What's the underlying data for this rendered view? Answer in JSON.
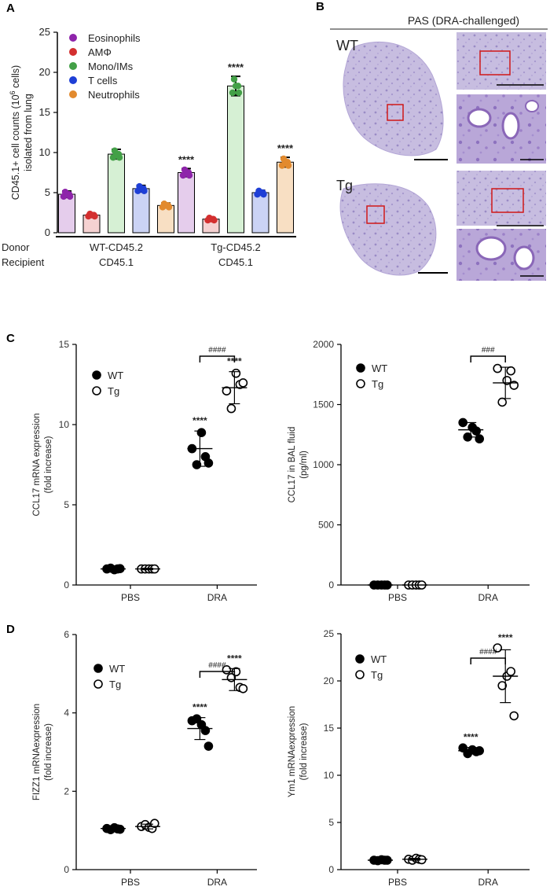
{
  "panel_labels": {
    "a": "A",
    "b": "B",
    "c": "C",
    "d": "D"
  },
  "colors": {
    "eos": "#8e24aa",
    "am": "#d32f2f",
    "mono": "#43a047",
    "t": "#1e3fd6",
    "neu": "#e28a2e"
  },
  "panelB": {
    "title": "PAS (DRA-challenged)",
    "wt_label": "WT",
    "tg_label": "Tg"
  },
  "chart_data": [
    {
      "id": "A",
      "type": "bar",
      "ylabel": "CD45.1+ cell counts (10^6 cells) isolated from lung",
      "ylabel_line1": "CD45.1+ cell counts (10",
      "ylabel_sup": "6",
      "ylabel_line1b": " cells)",
      "ylabel_line2": "isolated from lung",
      "ylim": [
        0,
        25
      ],
      "yticks": [
        0,
        5,
        10,
        15,
        20,
        25
      ],
      "series_names": [
        "Eosinophils",
        "AMΦ",
        "Mono/IMs",
        "T cells",
        "Neutrophils"
      ],
      "groups": [
        {
          "donor": "WT-CD45.2",
          "recipient": "CD45.1",
          "values": [
            4.8,
            2.2,
            9.8,
            5.5,
            3.4
          ],
          "errors": [
            0.4,
            0.2,
            0.6,
            0.4,
            0.3
          ],
          "sig": [
            "",
            "",
            "",
            "",
            ""
          ]
        },
        {
          "donor": "Tg-CD45.2",
          "recipient": "CD45.1",
          "values": [
            7.5,
            1.7,
            18.3,
            5.0,
            8.8
          ],
          "errors": [
            0.5,
            0.2,
            1.2,
            0.3,
            0.6
          ],
          "sig": [
            "****",
            "",
            "****",
            "",
            "****"
          ]
        }
      ],
      "row_labels": {
        "donor": "Donor",
        "recipient": "Recipient"
      }
    },
    {
      "id": "C1",
      "type": "scatter",
      "ylabel_line1": "CCL17 mRNA expression",
      "ylabel_line2": "(fold increase)",
      "ylim": [
        0,
        15
      ],
      "yticks": [
        0,
        5,
        10,
        15
      ],
      "categories": [
        "PBS",
        "DRA"
      ],
      "series": [
        {
          "name": "WT",
          "filled": true,
          "means": [
            1.0,
            8.5
          ],
          "errors": [
            0.05,
            1.1
          ],
          "points": [
            [
              1.0,
              1.05,
              0.95,
              1.0,
              1.02
            ],
            [
              8.5,
              7.5,
              9.5,
              8.0,
              7.6
            ]
          ]
        },
        {
          "name": "Tg",
          "filled": false,
          "means": [
            1.0,
            12.3
          ],
          "errors": [
            0.05,
            1.0
          ],
          "points": [
            [
              1.0,
              1.0,
              1.0,
              1.0,
              1.0
            ],
            [
              12.1,
              11.0,
              13.2,
              12.5,
              12.6
            ]
          ]
        }
      ],
      "stars": [
        "****",
        "****"
      ],
      "bracket": "####"
    },
    {
      "id": "C2",
      "type": "scatter",
      "ylabel_line1": "CCL17 in BAL fluid",
      "ylabel_line2": "(pg/ml)",
      "ylim": [
        0,
        2000
      ],
      "yticks": [
        0,
        500,
        1000,
        1500,
        2000
      ],
      "categories": [
        "PBS",
        "DRA"
      ],
      "series": [
        {
          "name": "WT",
          "filled": true,
          "means": [
            0,
            1290
          ],
          "errors": [
            0,
            60
          ],
          "points": [
            [
              0,
              0,
              0,
              0,
              0
            ],
            [
              1350,
              1230,
              1310,
              1280,
              1215
            ]
          ]
        },
        {
          "name": "Tg",
          "filled": false,
          "means": [
            0,
            1680
          ],
          "errors": [
            0,
            130
          ],
          "points": [
            [
              0,
              0,
              0,
              0,
              0
            ],
            [
              1800,
              1520,
              1700,
              1780,
              1660
            ]
          ]
        }
      ],
      "stars": [
        "",
        ""
      ],
      "bracket": "###"
    },
    {
      "id": "D1",
      "type": "scatter",
      "ylabel_line1": "FIZZ1 mRNAexpression",
      "ylabel_line2": "(fold increase)",
      "ylim": [
        0,
        6
      ],
      "yticks": [
        0,
        2,
        4,
        6
      ],
      "categories": [
        "PBS",
        "DRA"
      ],
      "series": [
        {
          "name": "WT",
          "filled": true,
          "means": [
            1.05,
            3.6
          ],
          "errors": [
            0.03,
            0.28
          ],
          "points": [
            [
              1.05,
              1.02,
              1.07,
              1.04,
              1.03
            ],
            [
              3.8,
              3.85,
              3.7,
              3.55,
              3.15
            ]
          ]
        },
        {
          "name": "Tg",
          "filled": false,
          "means": [
            1.1,
            4.85
          ],
          "errors": [
            0.06,
            0.28
          ],
          "points": [
            [
              1.1,
              1.15,
              1.08,
              1.05,
              1.18
            ],
            [
              5.1,
              4.9,
              5.05,
              4.65,
              4.62
            ]
          ]
        }
      ],
      "stars": [
        "****",
        "****"
      ],
      "bracket": "####"
    },
    {
      "id": "D2",
      "type": "scatter",
      "ylabel_line1": "Ym1 mRNAexpression",
      "ylabel_line2": "(fold increase)",
      "ylim": [
        0,
        25
      ],
      "yticks": [
        0,
        5,
        10,
        15,
        20,
        25
      ],
      "categories": [
        "PBS",
        "DRA"
      ],
      "series": [
        {
          "name": "WT",
          "filled": true,
          "means": [
            1.0,
            12.6
          ],
          "errors": [
            0.05,
            0.35
          ],
          "points": [
            [
              1.0,
              0.95,
              1.05,
              1.0,
              1.0
            ],
            [
              12.9,
              12.3,
              12.7,
              12.5,
              12.6
            ]
          ]
        },
        {
          "name": "Tg",
          "filled": false,
          "means": [
            1.1,
            20.5
          ],
          "errors": [
            0.1,
            2.8
          ],
          "points": [
            [
              1.1,
              1.0,
              1.2,
              1.1,
              1.05
            ],
            [
              23.5,
              19.5,
              20.5,
              21.0,
              16.3
            ]
          ]
        }
      ],
      "stars": [
        "****",
        "****"
      ],
      "bracket": "####"
    }
  ]
}
